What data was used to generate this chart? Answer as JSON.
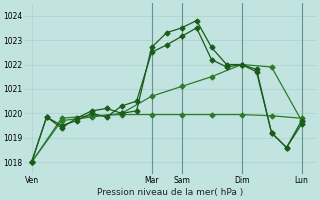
{
  "bg_color": "#c2e4e0",
  "grid_color_major": "#a8cccc",
  "grid_color_minor": "#b8d8d4",
  "line_color1": "#1a5c1a",
  "line_color2": "#2d7a2d",
  "title": "Pression niveau de la mer( hPa )",
  "ylim": [
    1017.5,
    1024.5
  ],
  "yticks": [
    1018,
    1019,
    1020,
    1021,
    1022,
    1023,
    1024
  ],
  "day_labels": [
    "Ven",
    "Mar",
    "Sam",
    "Dim",
    "Lun"
  ],
  "day_x": [
    0,
    8,
    10,
    14,
    18
  ],
  "vline_x": [
    8,
    10,
    14,
    18
  ],
  "series1_x": [
    0,
    1,
    2,
    3,
    4,
    5,
    6,
    7,
    8,
    9,
    10,
    11,
    12,
    13,
    14,
    15,
    16,
    17,
    18
  ],
  "series1_y": [
    1018.0,
    1019.85,
    1019.4,
    1019.8,
    1020.1,
    1020.2,
    1020.0,
    1020.1,
    1022.7,
    1023.3,
    1023.5,
    1023.8,
    1022.7,
    1022.0,
    1022.0,
    1021.8,
    1019.2,
    1018.6,
    1019.7
  ],
  "series2_x": [
    0,
    1,
    2,
    3,
    4,
    5,
    6,
    7,
    8,
    9,
    10,
    11,
    12,
    13,
    14,
    15,
    16,
    17,
    18
  ],
  "series2_y": [
    1018.0,
    1019.85,
    1019.5,
    1019.7,
    1020.0,
    1019.85,
    1020.3,
    1020.5,
    1022.5,
    1022.8,
    1023.15,
    1023.5,
    1022.2,
    1021.9,
    1022.0,
    1021.7,
    1019.2,
    1018.6,
    1019.55
  ],
  "series3_x": [
    0,
    2,
    4,
    6,
    8,
    10,
    12,
    14,
    16,
    18
  ],
  "series3_y": [
    1018.0,
    1019.7,
    1019.85,
    1020.0,
    1020.7,
    1021.1,
    1021.5,
    1022.0,
    1021.9,
    1019.7
  ],
  "series4_x": [
    0,
    2,
    4,
    6,
    8,
    10,
    12,
    14,
    16,
    18
  ],
  "series4_y": [
    1018.0,
    1019.8,
    1019.9,
    1019.95,
    1019.95,
    1019.95,
    1019.95,
    1019.95,
    1019.9,
    1019.8
  ]
}
